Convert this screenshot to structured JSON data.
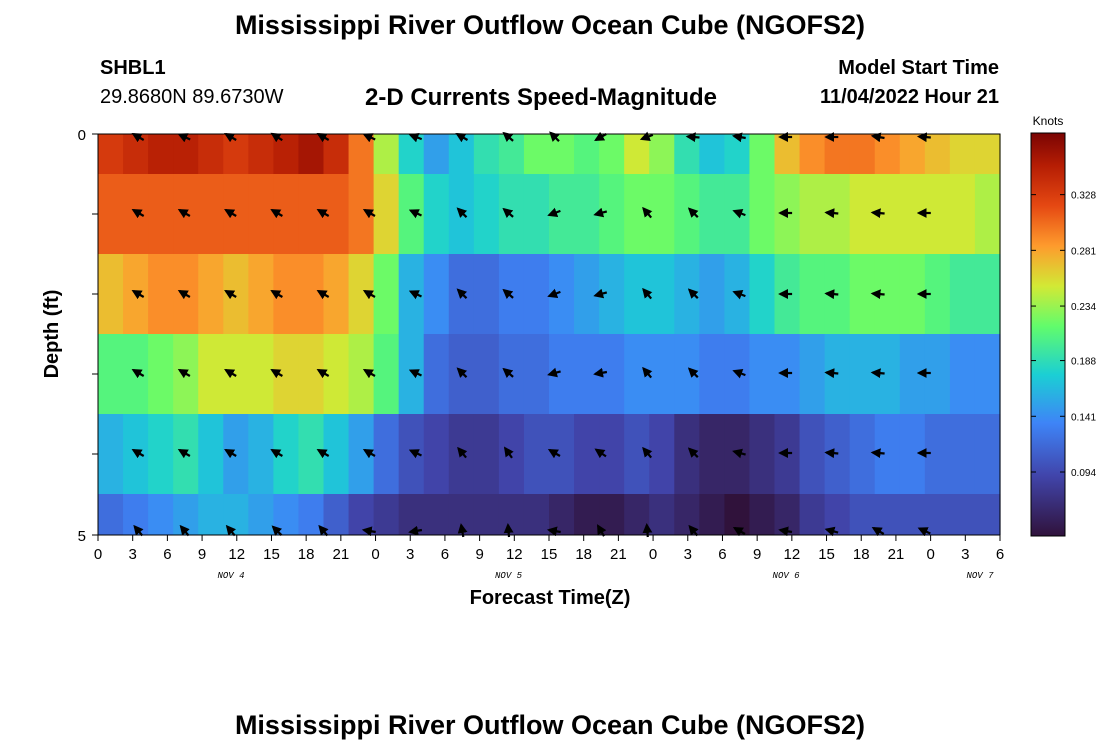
{
  "header": {
    "title": "Mississippi River Outflow Ocean Cube (NGOFS2)",
    "station_id": "SHBL1",
    "station_coords": "29.8680N  89.6730W",
    "subtitle": "2-D Currents Speed-Magnitude",
    "model_start_label": "Model Start Time",
    "model_start_value": "11/04/2022 Hour 21"
  },
  "footer": {
    "title": "Mississippi River Outflow Ocean Cube (NGOFS2)"
  },
  "chart_data": {
    "type": "heatmap",
    "xlabel": "Forecast Time(Z)",
    "ylabel": "Depth (ft)",
    "x_tick_labels": [
      "0",
      "3",
      "6",
      "9",
      "12",
      "15",
      "18",
      "21",
      "0",
      "3",
      "6",
      "9",
      "12",
      "15",
      "18",
      "21",
      "0",
      "3",
      "6",
      "9",
      "12",
      "15",
      "18",
      "21",
      "0",
      "3",
      "6"
    ],
    "date_labels": [
      "NOV 4",
      "NOV 5",
      "NOV 6",
      "NOV 7"
    ],
    "y_tick_labels": [
      "0",
      "5"
    ],
    "ylim": [
      0,
      5
    ],
    "colorbar": {
      "unit": "Knots",
      "ticks": [
        0.328,
        0.281,
        0.234,
        0.188,
        0.141,
        0.094
      ],
      "range": [
        0.04,
        0.38
      ]
    },
    "layers": [
      {
        "level": 1,
        "speed": [
          0.33,
          0.34,
          0.35,
          0.35,
          0.34,
          0.33,
          0.34,
          0.35,
          0.36,
          0.34,
          0.3,
          0.24,
          0.18,
          0.15,
          0.17,
          0.19,
          0.2,
          0.22,
          0.22,
          0.21,
          0.22,
          0.25,
          0.23,
          0.19,
          0.17,
          0.18,
          0.22,
          0.27,
          0.29,
          0.3,
          0.3,
          0.29,
          0.28,
          0.27,
          0.26,
          0.26
        ]
      },
      {
        "level": 2,
        "speed": [
          0.31,
          0.31,
          0.31,
          0.31,
          0.31,
          0.31,
          0.31,
          0.31,
          0.31,
          0.31,
          0.3,
          0.26,
          0.21,
          0.18,
          0.17,
          0.18,
          0.19,
          0.19,
          0.2,
          0.2,
          0.21,
          0.22,
          0.22,
          0.21,
          0.2,
          0.2,
          0.22,
          0.23,
          0.24,
          0.24,
          0.25,
          0.25,
          0.25,
          0.25,
          0.25,
          0.24
        ]
      },
      {
        "level": 3,
        "speed": [
          0.27,
          0.28,
          0.29,
          0.29,
          0.28,
          0.27,
          0.28,
          0.29,
          0.29,
          0.28,
          0.26,
          0.22,
          0.16,
          0.14,
          0.12,
          0.12,
          0.13,
          0.13,
          0.14,
          0.15,
          0.16,
          0.17,
          0.17,
          0.16,
          0.15,
          0.16,
          0.18,
          0.2,
          0.21,
          0.21,
          0.22,
          0.22,
          0.22,
          0.21,
          0.2,
          0.2
        ]
      },
      {
        "level": 4,
        "speed": [
          0.21,
          0.21,
          0.22,
          0.23,
          0.25,
          0.25,
          0.25,
          0.26,
          0.26,
          0.25,
          0.24,
          0.21,
          0.16,
          0.12,
          0.11,
          0.11,
          0.12,
          0.12,
          0.13,
          0.13,
          0.13,
          0.14,
          0.14,
          0.14,
          0.13,
          0.13,
          0.14,
          0.14,
          0.15,
          0.16,
          0.16,
          0.16,
          0.15,
          0.15,
          0.14,
          0.14
        ]
      },
      {
        "level": 5,
        "speed": [
          0.16,
          0.17,
          0.18,
          0.19,
          0.17,
          0.15,
          0.16,
          0.18,
          0.19,
          0.17,
          0.15,
          0.12,
          0.1,
          0.09,
          0.08,
          0.08,
          0.09,
          0.1,
          0.1,
          0.09,
          0.09,
          0.1,
          0.09,
          0.07,
          0.06,
          0.06,
          0.07,
          0.08,
          0.1,
          0.11,
          0.12,
          0.13,
          0.13,
          0.12,
          0.12,
          0.12
        ]
      },
      {
        "level": 6,
        "speed": [
          0.12,
          0.13,
          0.14,
          0.15,
          0.16,
          0.16,
          0.15,
          0.14,
          0.13,
          0.11,
          0.09,
          0.08,
          0.07,
          0.07,
          0.07,
          0.07,
          0.07,
          0.07,
          0.06,
          0.05,
          0.05,
          0.06,
          0.07,
          0.06,
          0.05,
          0.04,
          0.05,
          0.06,
          0.08,
          0.09,
          0.1,
          0.1,
          0.1,
          0.1,
          0.1,
          0.1
        ]
      }
    ],
    "arrows": {
      "x_hours": [
        3.5,
        7.5,
        11.5,
        15.5,
        19.5,
        23.5,
        27.5,
        31.5,
        35.5,
        39.5,
        43.5,
        47.5,
        51.5,
        55.5,
        59.5,
        63.5,
        67.5,
        71.5
      ],
      "levels": [
        {
          "level": 1,
          "angles_deg": [
            150,
            155,
            150,
            148,
            150,
            155,
            160,
            150,
            140,
            135,
            210,
            200,
            175,
            170,
            180,
            180,
            170,
            175
          ]
        },
        {
          "level": 2,
          "angles_deg": [
            150,
            150,
            150,
            150,
            150,
            150,
            155,
            135,
            140,
            200,
            195,
            130,
            135,
            160,
            180,
            175,
            175,
            180
          ]
        },
        {
          "level": 3,
          "angles_deg": [
            150,
            150,
            150,
            150,
            150,
            150,
            155,
            135,
            140,
            200,
            195,
            130,
            135,
            160,
            180,
            175,
            175,
            180
          ]
        },
        {
          "level": 4,
          "angles_deg": [
            150,
            150,
            150,
            150,
            150,
            150,
            155,
            135,
            140,
            195,
            190,
            130,
            135,
            160,
            180,
            175,
            175,
            180
          ]
        },
        {
          "level": 5,
          "angles_deg": [
            150,
            150,
            150,
            150,
            150,
            150,
            155,
            130,
            125,
            150,
            145,
            130,
            135,
            165,
            180,
            175,
            175,
            180
          ]
        },
        {
          "level": 6,
          "angles_deg": [
            130,
            130,
            130,
            135,
            130,
            170,
            190,
            100,
            95,
            170,
            120,
            95,
            130,
            150,
            170,
            165,
            150,
            155
          ]
        }
      ]
    }
  }
}
